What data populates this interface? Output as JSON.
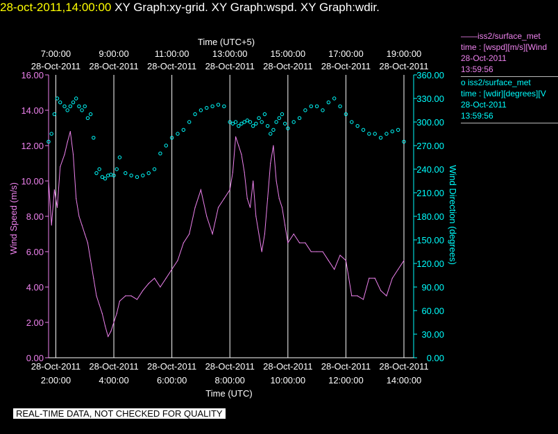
{
  "header": {
    "timestamp": "28-oct-2011,14:00:00",
    "graphs": [
      "XY Graph:xy-grid.",
      "XY Graph:wspd.",
      "XY Graph:wdir."
    ]
  },
  "legend": {
    "series1": {
      "line": "——iss2/surface_met",
      "desc": "time : [wspd][m/s][Wind",
      "date": "28-Oct-2011",
      "time": "13:59:56"
    },
    "series2": {
      "line": "o  iss2/surface_met",
      "desc": "time : [wdir][degrees][V",
      "date": "28-Oct-2011",
      "time": "13:59:56"
    }
  },
  "footer": {
    "qc_note": "REAL-TIME DATA, NOT CHECKED FOR QUALITY"
  },
  "colors": {
    "grid": "#ffffff",
    "speed": "#ee82ee",
    "direction": "#00ffff",
    "title": "#ffff00"
  },
  "chart_data": {
    "type": "line",
    "top_axis_title": "Time (UTC+5)",
    "bottom_axis_title": "Time (UTC)",
    "ylabel_left": "Wind Speed (m/s)",
    "ylabel_right": "Wind Direction (degrees)",
    "x_range": [
      1.75,
      14.0
    ],
    "x_ticks": [
      2,
      4,
      6,
      8,
      10,
      12,
      14
    ],
    "x_tick_labels_bottom": [
      [
        "28-Oct-2011",
        "2:00:00"
      ],
      [
        "28-Oct-2011",
        "4:00:00"
      ],
      [
        "28-Oct-2011",
        "6:00:00"
      ],
      [
        "28-Oct-2011",
        "8:00:00"
      ],
      [
        "28-Oct-2011",
        "10:00:00"
      ],
      [
        "28-Oct-2011",
        "12:00:00"
      ],
      [
        "28-Oct-2011",
        "14:00:00"
      ]
    ],
    "x_tick_labels_top": [
      [
        "7:00:00",
        "28-Oct-2011"
      ],
      [
        "9:00:00",
        "28-Oct-2011"
      ],
      [
        "11:00:00",
        "28-Oct-2011"
      ],
      [
        "13:00:00",
        "28-Oct-2011"
      ],
      [
        "15:00:00",
        "28-Oct-2011"
      ],
      [
        "17:00:00",
        "28-Oct-2011"
      ],
      [
        "19:00:00",
        "28-Oct-2011"
      ]
    ],
    "y_left_range": [
      0,
      16
    ],
    "y_left_ticks": [
      "0.00",
      "2.00",
      "4.00",
      "6.00",
      "8.00",
      "10.00",
      "12.00",
      "14.00",
      "16.00"
    ],
    "y_right_range": [
      0,
      360
    ],
    "y_right_ticks": [
      "0.00",
      "30.00",
      "60.00",
      "90.00",
      "120.00",
      "150.00",
      "180.00",
      "210.00",
      "240.00",
      "270.00",
      "300.00",
      "330.00",
      "360.00"
    ],
    "grid": "vertical",
    "series": [
      {
        "name": "iss2/surface_met wspd",
        "axis": "left",
        "style": "line",
        "x": [
          1.75,
          1.85,
          1.95,
          2.05,
          2.15,
          2.3,
          2.4,
          2.5,
          2.6,
          2.7,
          2.8,
          2.9,
          3.0,
          3.1,
          3.2,
          3.3,
          3.4,
          3.5,
          3.6,
          3.7,
          3.8,
          3.9,
          4.0,
          4.1,
          4.2,
          4.4,
          4.6,
          4.8,
          5.0,
          5.2,
          5.4,
          5.6,
          5.8,
          6.0,
          6.2,
          6.4,
          6.6,
          6.8,
          7.0,
          7.2,
          7.4,
          7.6,
          7.8,
          8.0,
          8.1,
          8.2,
          8.3,
          8.4,
          8.5,
          8.6,
          8.7,
          8.8,
          8.9,
          9.0,
          9.1,
          9.2,
          9.3,
          9.4,
          9.5,
          9.6,
          9.7,
          9.8,
          9.9,
          10.0,
          10.2,
          10.4,
          10.6,
          10.8,
          11.0,
          11.2,
          11.4,
          11.6,
          11.8,
          12.0,
          12.2,
          12.4,
          12.6,
          12.8,
          13.0,
          13.2,
          13.4,
          13.6,
          13.8,
          14.0
        ],
        "y": [
          10.0,
          7.5,
          9.5,
          8.5,
          10.8,
          11.5,
          12.2,
          12.8,
          11.5,
          9.0,
          8.0,
          7.5,
          7.0,
          6.5,
          5.5,
          4.5,
          3.5,
          3.0,
          2.5,
          1.8,
          1.2,
          1.5,
          2.0,
          2.5,
          3.2,
          3.5,
          3.5,
          3.3,
          3.8,
          4.2,
          4.5,
          4.0,
          4.5,
          5.0,
          5.5,
          6.5,
          7.0,
          8.5,
          9.5,
          8.0,
          7.0,
          8.5,
          9.0,
          9.5,
          10.5,
          12.5,
          12.0,
          11.5,
          10.5,
          9.0,
          8.5,
          10.0,
          8.0,
          7.0,
          6.0,
          7.0,
          9.0,
          11.0,
          12.0,
          10.0,
          9.0,
          8.5,
          7.5,
          6.5,
          7.0,
          6.5,
          6.5,
          6.0,
          6.0,
          6.0,
          5.5,
          5.0,
          5.8,
          5.5,
          3.5,
          3.5,
          3.3,
          4.5,
          4.5,
          3.8,
          3.5,
          4.5,
          5.0,
          5.5
        ]
      },
      {
        "name": "iss2/surface_met wdir",
        "axis": "right",
        "style": "markers",
        "x": [
          1.75,
          1.85,
          1.95,
          2.05,
          2.15,
          2.3,
          2.4,
          2.5,
          2.6,
          2.7,
          2.8,
          2.9,
          3.0,
          3.1,
          3.2,
          3.3,
          3.4,
          3.5,
          3.6,
          3.7,
          3.8,
          3.9,
          4.0,
          4.1,
          4.2,
          4.4,
          4.6,
          4.8,
          5.0,
          5.2,
          5.4,
          5.6,
          5.8,
          6.0,
          6.2,
          6.4,
          6.6,
          6.8,
          7.0,
          7.2,
          7.4,
          7.6,
          7.8,
          8.0,
          8.1,
          8.2,
          8.3,
          8.4,
          8.5,
          8.6,
          8.7,
          8.8,
          8.9,
          9.0,
          9.1,
          9.2,
          9.3,
          9.4,
          9.5,
          9.6,
          9.7,
          9.8,
          9.9,
          10.0,
          10.2,
          10.4,
          10.6,
          10.8,
          11.0,
          11.2,
          11.4,
          11.6,
          11.8,
          12.0,
          12.2,
          12.4,
          12.6,
          12.8,
          13.0,
          13.2,
          13.4,
          13.6,
          13.8,
          14.0
        ],
        "y": [
          275,
          285,
          310,
          330,
          325,
          320,
          315,
          320,
          325,
          330,
          320,
          315,
          320,
          305,
          310,
          280,
          235,
          240,
          230,
          228,
          232,
          233,
          232,
          240,
          255,
          235,
          232,
          230,
          232,
          235,
          240,
          260,
          270,
          280,
          285,
          290,
          300,
          310,
          315,
          318,
          320,
          322,
          320,
          300,
          298,
          300,
          295,
          298,
          300,
          302,
          300,
          295,
          298,
          305,
          300,
          310,
          295,
          285,
          290,
          300,
          305,
          310,
          298,
          292,
          300,
          305,
          315,
          320,
          320,
          315,
          325,
          330,
          320,
          310,
          300,
          295,
          290,
          285,
          285,
          280,
          285,
          288,
          290,
          275
        ]
      }
    ]
  }
}
